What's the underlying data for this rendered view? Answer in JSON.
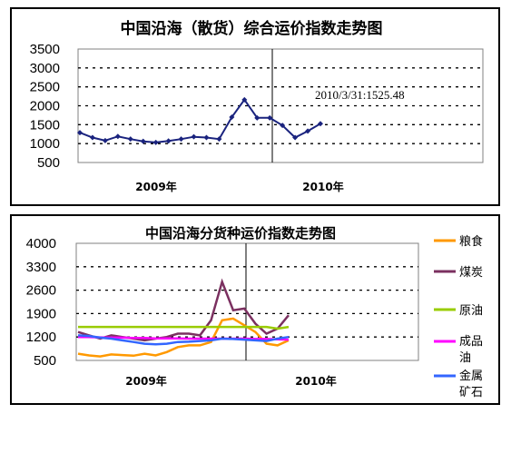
{
  "chart_data": [
    {
      "type": "line",
      "title": "中国沿海（散货）综合运价指数走势图",
      "ylim": [
        500,
        3500
      ],
      "yticks": [
        "3500",
        "3000",
        "2500",
        "2000",
        "1500",
        "1000",
        "500"
      ],
      "xticks": [
        "2009年",
        "2010年"
      ],
      "grid": true,
      "legend": "none",
      "annotation": "2010/3/31:1525.48",
      "series": [
        {
          "color": "#1a237e",
          "x": [
            "2009-01",
            "2009-02",
            "2009-03",
            "2009-04",
            "2009-05",
            "2009-06",
            "2009-07",
            "2009-08",
            "2009-09",
            "2009-10",
            "2009-11",
            "2009-11b",
            "2009-12",
            "2009-12b",
            "2010-01",
            "2010-01b",
            "2010-02",
            "2010-02b",
            "2010-03",
            "2010-03b"
          ],
          "values": [
            1290,
            1160,
            1080,
            1190,
            1120,
            1060,
            1030,
            1070,
            1120,
            1180,
            1160,
            1120,
            1700,
            2160,
            1680,
            1680,
            1480,
            1160,
            1330,
            1525
          ]
        }
      ]
    },
    {
      "type": "line",
      "title": "中国沿海分货种运价指数走势图",
      "ylim": [
        500,
        4000
      ],
      "yticks": [
        "4000",
        "3300",
        "2600",
        "1900",
        "1200",
        "500"
      ],
      "xticks": [
        "2009年",
        "2010年"
      ],
      "grid": true,
      "legend": "right",
      "series": [
        {
          "name": "粮食",
          "color": "#ff9900",
          "values": [
            700,
            650,
            620,
            680,
            660,
            640,
            700,
            650,
            750,
            900,
            950,
            950,
            1050,
            1700,
            1750,
            1550,
            1350,
            1000,
            950,
            1100
          ]
        },
        {
          "name": "煤炭",
          "color": "#7b3060",
          "values": [
            1350,
            1250,
            1150,
            1250,
            1200,
            1150,
            1100,
            1150,
            1200,
            1300,
            1300,
            1250,
            1700,
            2850,
            2000,
            2050,
            1600,
            1300,
            1450,
            1850
          ]
        },
        {
          "name": "原油",
          "color": "#99cc00",
          "values": [
            1500,
            1500,
            1500,
            1500,
            1500,
            1500,
            1500,
            1500,
            1500,
            1500,
            1500,
            1500,
            1500,
            1500,
            1500,
            1500,
            1500,
            1500,
            1450,
            1500
          ]
        },
        {
          "name": "成品油",
          "color": "#ff00ff",
          "values": [
            1200,
            1200,
            1190,
            1180,
            1180,
            1170,
            1170,
            1160,
            1160,
            1160,
            1150,
            1150,
            1150,
            1150,
            1150,
            1150,
            1140,
            1140,
            1130,
            1120
          ]
        },
        {
          "name": "金属矿石",
          "color": "#3366ff",
          "values": [
            1250,
            1230,
            1180,
            1150,
            1100,
            1050,
            1000,
            980,
            1000,
            1050,
            1060,
            1080,
            1100,
            1150,
            1140,
            1120,
            1100,
            1080,
            1150,
            1200
          ]
        }
      ]
    }
  ]
}
